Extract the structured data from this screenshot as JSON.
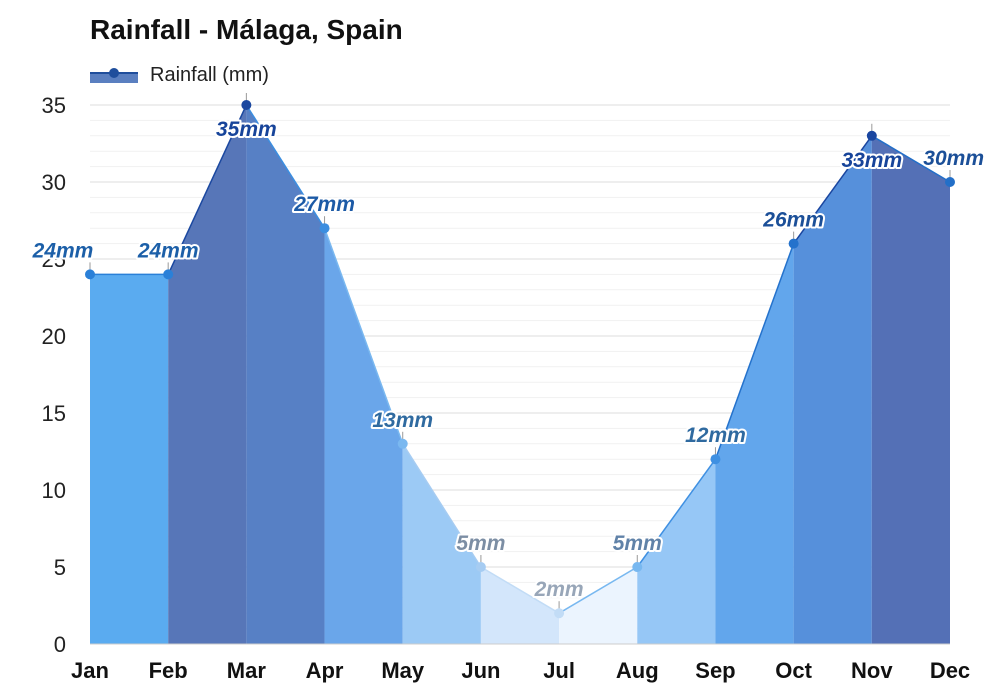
{
  "chart_data": {
    "type": "area",
    "title": "Rainfall - Málaga, Spain",
    "xlabel": "",
    "ylabel": "",
    "categories": [
      "Jan",
      "Feb",
      "Mar",
      "Apr",
      "May",
      "Jun",
      "Jul",
      "Aug",
      "Sep",
      "Oct",
      "Nov",
      "Dec"
    ],
    "series": [
      {
        "name": "Rainfall (mm)",
        "values": [
          24,
          24,
          35,
          27,
          13,
          5,
          2,
          5,
          12,
          26,
          33,
          30
        ]
      }
    ],
    "data_labels": [
      "24mm",
      "24mm",
      "35mm",
      "27mm",
      "13mm",
      "5mm",
      "2mm",
      "5mm",
      "12mm",
      "26mm",
      "33mm",
      "30mm"
    ],
    "y_ticks": [
      "0",
      "5",
      "10",
      "15",
      "20",
      "25",
      "30",
      "35"
    ],
    "ylim": [
      0,
      35
    ],
    "grid": true,
    "legend_position": "top-left",
    "colors": {
      "legend_line": "#1f4e9c",
      "legend_fill": "#5a7fc0",
      "fills": [
        "#5aabf0",
        "#5776b8",
        "#5780c5",
        "#6aa6ea",
        "#9ccaf5",
        "#d3e6fb",
        "#ebf4fe",
        "#96c7f6",
        "#62a6ec",
        "#5690db",
        "#5470b6",
        "#5b8ed4"
      ],
      "lines": [
        "#2a80d8",
        "#2a80d8",
        "#1b48a0",
        "#3c8ee0",
        "#7ab8f0",
        "#a6ccf2",
        "#c2dcf6",
        "#78b8f0",
        "#3f90e2",
        "#2472cc",
        "#1a46a0",
        "#236fc8"
      ],
      "labels": [
        "#1c5fa8",
        "#1c5fa8",
        "#17449a",
        "#1c5aa6",
        "#2f6aa0",
        "#7c8ea4",
        "#98a6b8",
        "#6082a8",
        "#2f6aa0",
        "#1b4f98",
        "#17449a",
        "#1b4f98"
      ]
    }
  }
}
